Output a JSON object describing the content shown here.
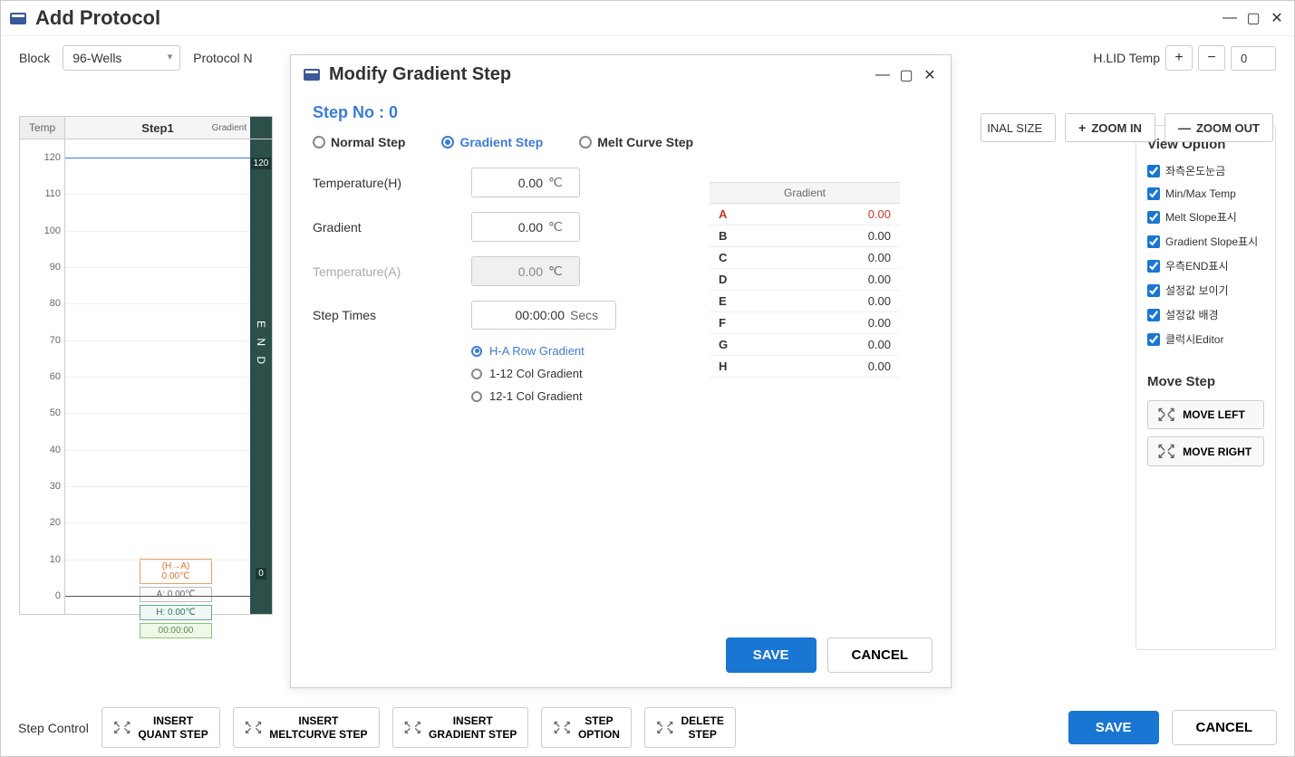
{
  "main": {
    "title": "Add Protocol",
    "block_label": "Block",
    "block_value": "96-Wells",
    "protocol_name_label": "Protocol N",
    "hlid_label": "H.LID Temp",
    "hlid_value": "0"
  },
  "zoom": {
    "original": "ORIGINAL SIZE",
    "in": "ZOOM IN",
    "out": "ZOOM OUT"
  },
  "chart": {
    "temp_header": "Temp",
    "step_header": "Step1",
    "gradient_header": "Gradient",
    "y_ticks": [
      120,
      110,
      100,
      90,
      80,
      70,
      60,
      50,
      40,
      30,
      20,
      10,
      0
    ],
    "end_label": "E\nN\nD",
    "end_top": "120",
    "end_bottom": "0",
    "labels": {
      "ha": "(H→A) 0.00℃",
      "a": "A: 0.00℃",
      "h": "H: 0.00℃",
      "time": "00:00:00"
    }
  },
  "right": {
    "view_title": "View Option",
    "checks": [
      "좌측온도눈금",
      "Min/Max Temp",
      "Melt Slope표시",
      "Gradient Slope표시",
      "우측END표시",
      "설정값 보이기",
      "설정값 배경",
      "클럭시Editor"
    ],
    "move_title": "Move Step",
    "move_left": "MOVE LEFT",
    "move_right": "MOVE RIGHT"
  },
  "bottom": {
    "label": "Step Control",
    "buttons": [
      "INSERT QUANT STEP",
      "INSERT MELTCURVE STEP",
      "INSERT GRADIENT STEP",
      "STEP OPTION",
      "DELETE STEP"
    ],
    "save": "SAVE",
    "cancel": "CANCEL"
  },
  "modal": {
    "title": "Modify Gradient Step",
    "step_no": "Step No : 0",
    "types": [
      "Normal Step",
      "Gradient Step",
      "Melt Curve Step"
    ],
    "selected_type": 1,
    "fields": {
      "temp_h_label": "Temperature(H)",
      "temp_h_value": "0.00",
      "gradient_label": "Gradient",
      "gradient_value": "0.00",
      "temp_a_label": "Temperature(A)",
      "temp_a_value": "0.00",
      "step_times_label": "Step Times",
      "step_times_value": "00:00:00",
      "temp_unit": "℃",
      "time_unit": "Secs"
    },
    "sub_radios": [
      "H-A Row Gradient",
      "1-12 Col Gradient",
      "12-1 Col Gradient"
    ],
    "sub_selected": 0,
    "gradient_table": {
      "header": "Gradient",
      "rows": [
        {
          "label": "A",
          "value": "0.00",
          "highlight": true
        },
        {
          "label": "B",
          "value": "0.00"
        },
        {
          "label": "C",
          "value": "0.00"
        },
        {
          "label": "D",
          "value": "0.00"
        },
        {
          "label": "E",
          "value": "0.00"
        },
        {
          "label": "F",
          "value": "0.00"
        },
        {
          "label": "G",
          "value": "0.00"
        },
        {
          "label": "H",
          "value": "0.00"
        }
      ]
    },
    "save": "SAVE",
    "cancel": "CANCEL"
  }
}
